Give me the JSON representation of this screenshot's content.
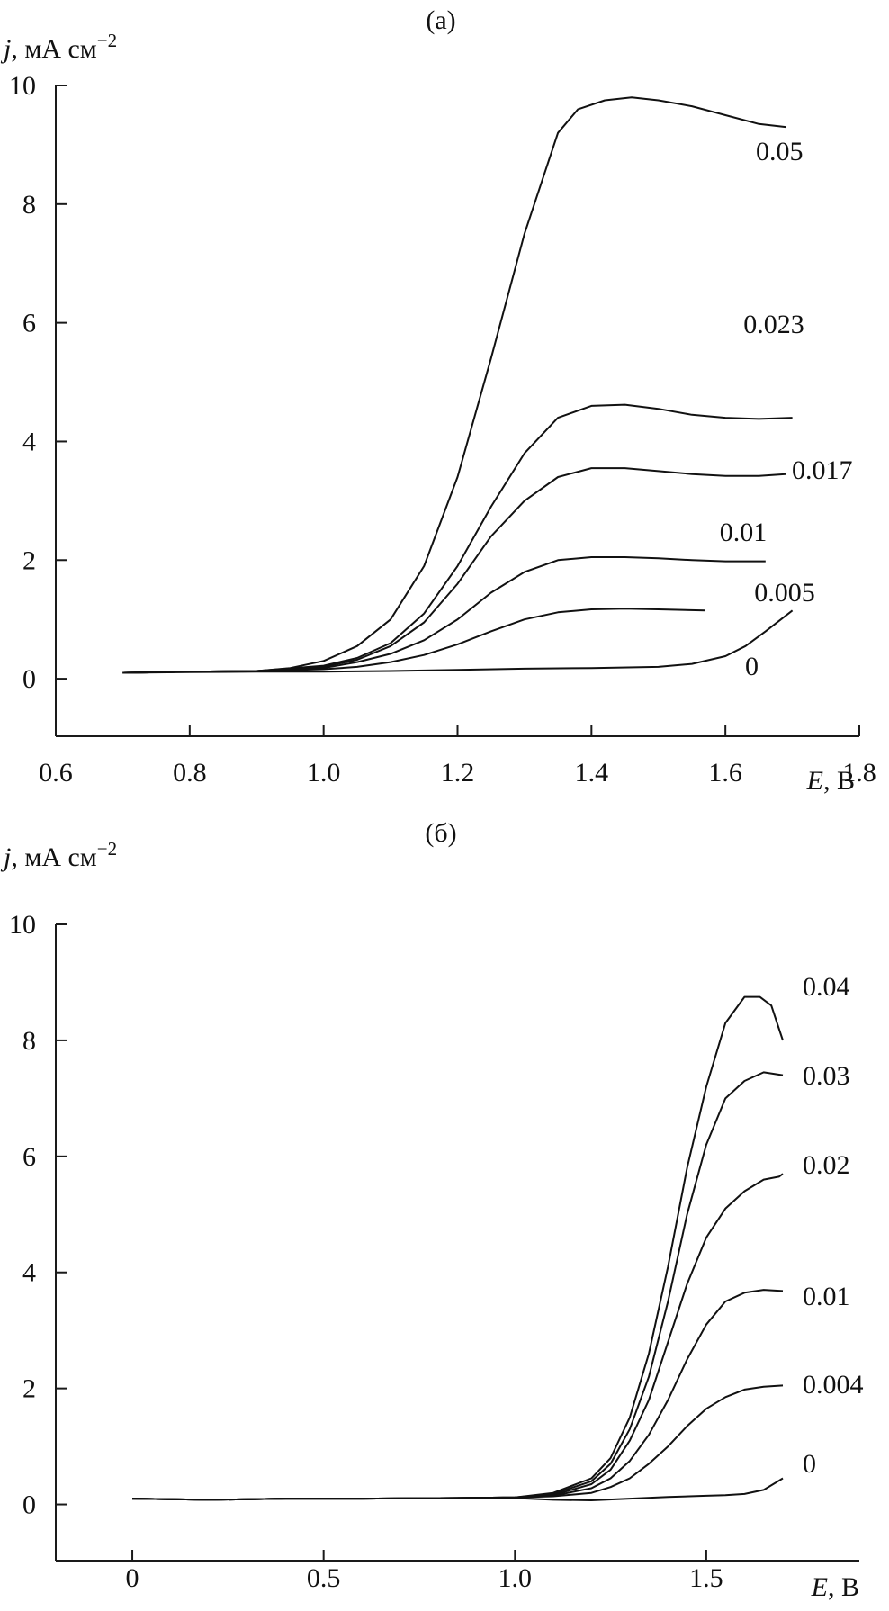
{
  "chart_data": [
    {
      "type": "line",
      "panel_label": "(a)",
      "ylabel_var": "j",
      "ylabel_units": ", мА см",
      "ylabel_exp": "−2",
      "xlabel_var": "E",
      "xlabel_units": ", В",
      "xlim": [
        0.6,
        1.8
      ],
      "ylim": [
        -1,
        10
      ],
      "xticks": [
        0.6,
        0.8,
        1.0,
        1.2,
        1.4,
        1.6,
        1.8
      ],
      "xtick_labels": [
        "0.6",
        "0.8",
        "1.0",
        "1.2",
        "1.4",
        "1.6",
        "1.8"
      ],
      "yticks": [
        0,
        2,
        4,
        6,
        8,
        10
      ],
      "ytick_labels": [
        "0",
        "2",
        "4",
        "6",
        "8",
        "10"
      ],
      "grid": false,
      "series": [
        {
          "name": "0.05",
          "x": [
            0.7,
            0.8,
            0.9,
            0.95,
            1.0,
            1.05,
            1.1,
            1.15,
            1.2,
            1.25,
            1.3,
            1.35,
            1.38,
            1.42,
            1.46,
            1.5,
            1.55,
            1.6,
            1.65,
            1.69
          ],
          "y": [
            0.1,
            0.12,
            0.13,
            0.18,
            0.3,
            0.55,
            1.0,
            1.9,
            3.4,
            5.4,
            7.5,
            9.2,
            9.6,
            9.75,
            9.8,
            9.75,
            9.65,
            9.5,
            9.35,
            9.3
          ]
        },
        {
          "name": "0.023",
          "x": [
            0.7,
            0.8,
            0.9,
            1.0,
            1.05,
            1.1,
            1.15,
            1.2,
            1.25,
            1.3,
            1.35,
            1.4,
            1.45,
            1.5,
            1.55,
            1.6,
            1.65,
            1.7
          ],
          "y": [
            0.1,
            0.12,
            0.13,
            0.22,
            0.35,
            0.6,
            1.1,
            1.9,
            2.9,
            3.8,
            4.4,
            4.6,
            4.62,
            4.55,
            4.45,
            4.4,
            4.38,
            4.4
          ]
        },
        {
          "name": "0.017",
          "x": [
            0.7,
            0.8,
            0.9,
            1.0,
            1.05,
            1.1,
            1.15,
            1.2,
            1.25,
            1.3,
            1.35,
            1.4,
            1.45,
            1.5,
            1.55,
            1.6,
            1.65,
            1.69
          ],
          "y": [
            0.1,
            0.12,
            0.13,
            0.2,
            0.32,
            0.55,
            0.95,
            1.6,
            2.4,
            3.0,
            3.4,
            3.55,
            3.55,
            3.5,
            3.45,
            3.42,
            3.42,
            3.45
          ]
        },
        {
          "name": "0.01",
          "x": [
            0.7,
            0.8,
            0.9,
            1.0,
            1.05,
            1.1,
            1.15,
            1.2,
            1.25,
            1.3,
            1.35,
            1.4,
            1.45,
            1.5,
            1.55,
            1.6,
            1.66
          ],
          "y": [
            0.1,
            0.12,
            0.13,
            0.18,
            0.28,
            0.42,
            0.65,
            1.0,
            1.45,
            1.8,
            2.0,
            2.05,
            2.05,
            2.03,
            2.0,
            1.98,
            1.98
          ]
        },
        {
          "name": "0.005",
          "x": [
            0.7,
            0.8,
            0.9,
            1.0,
            1.05,
            1.1,
            1.15,
            1.2,
            1.25,
            1.3,
            1.35,
            1.4,
            1.45,
            1.5,
            1.57
          ],
          "y": [
            0.1,
            0.12,
            0.13,
            0.16,
            0.2,
            0.28,
            0.4,
            0.58,
            0.8,
            1.0,
            1.12,
            1.17,
            1.18,
            1.17,
            1.15
          ]
        },
        {
          "name": "0",
          "x": [
            0.7,
            0.8,
            0.9,
            1.0,
            1.1,
            1.2,
            1.3,
            1.4,
            1.5,
            1.55,
            1.6,
            1.63,
            1.66,
            1.7
          ],
          "y": [
            0.1,
            0.11,
            0.12,
            0.12,
            0.13,
            0.15,
            0.17,
            0.18,
            0.2,
            0.25,
            0.38,
            0.55,
            0.8,
            1.15
          ]
        }
      ]
    },
    {
      "type": "line",
      "panel_label": "(б)",
      "ylabel_var": "j",
      "ylabel_units": ", мА см",
      "ylabel_exp": "−2",
      "xlabel_var": "E",
      "xlabel_units": ", В",
      "xlim": [
        -0.2,
        1.9
      ],
      "ylim": [
        -1,
        10
      ],
      "xticks": [
        0,
        0.5,
        1.0,
        1.5
      ],
      "xtick_labels": [
        "0",
        "0.5",
        "1.0",
        "1.5"
      ],
      "yticks": [
        0,
        2,
        4,
        6,
        8,
        10
      ],
      "ytick_labels": [
        "0",
        "2",
        "4",
        "6",
        "8",
        "10"
      ],
      "grid": false,
      "series": [
        {
          "name": "0.04",
          "x": [
            0.0,
            0.2,
            0.4,
            0.6,
            0.8,
            1.0,
            1.1,
            1.2,
            1.25,
            1.3,
            1.35,
            1.4,
            1.45,
            1.5,
            1.55,
            1.6,
            1.64,
            1.67,
            1.69,
            1.7
          ],
          "y": [
            0.1,
            0.08,
            0.1,
            0.1,
            0.11,
            0.12,
            0.2,
            0.45,
            0.8,
            1.5,
            2.6,
            4.1,
            5.8,
            7.2,
            8.3,
            8.75,
            8.75,
            8.6,
            8.2,
            8.0
          ]
        },
        {
          "name": "0.03",
          "x": [
            0.0,
            0.2,
            0.4,
            0.6,
            0.8,
            1.0,
            1.1,
            1.2,
            1.25,
            1.3,
            1.35,
            1.4,
            1.45,
            1.5,
            1.55,
            1.6,
            1.65,
            1.7
          ],
          "y": [
            0.1,
            0.08,
            0.1,
            0.1,
            0.11,
            0.12,
            0.18,
            0.4,
            0.7,
            1.3,
            2.2,
            3.5,
            5.0,
            6.2,
            7.0,
            7.3,
            7.45,
            7.4
          ]
        },
        {
          "name": "0.02",
          "x": [
            0.0,
            0.2,
            0.4,
            0.6,
            0.8,
            1.0,
            1.1,
            1.2,
            1.25,
            1.3,
            1.35,
            1.4,
            1.45,
            1.5,
            1.55,
            1.6,
            1.65,
            1.69,
            1.7
          ],
          "y": [
            0.1,
            0.08,
            0.1,
            0.1,
            0.11,
            0.12,
            0.16,
            0.35,
            0.6,
            1.1,
            1.8,
            2.8,
            3.8,
            4.6,
            5.1,
            5.4,
            5.6,
            5.65,
            5.7
          ]
        },
        {
          "name": "0.01",
          "x": [
            0.0,
            0.2,
            0.4,
            0.6,
            0.8,
            1.0,
            1.1,
            1.2,
            1.25,
            1.3,
            1.35,
            1.4,
            1.45,
            1.5,
            1.55,
            1.6,
            1.65,
            1.7
          ],
          "y": [
            0.1,
            0.08,
            0.1,
            0.1,
            0.11,
            0.12,
            0.15,
            0.28,
            0.45,
            0.75,
            1.2,
            1.8,
            2.5,
            3.1,
            3.5,
            3.65,
            3.7,
            3.68
          ]
        },
        {
          "name": "0.004",
          "x": [
            0.0,
            0.2,
            0.4,
            0.6,
            0.8,
            1.0,
            1.1,
            1.2,
            1.25,
            1.3,
            1.35,
            1.4,
            1.45,
            1.5,
            1.55,
            1.6,
            1.65,
            1.7
          ],
          "y": [
            0.1,
            0.08,
            0.1,
            0.1,
            0.11,
            0.12,
            0.14,
            0.2,
            0.3,
            0.45,
            0.7,
            1.0,
            1.35,
            1.65,
            1.85,
            1.98,
            2.03,
            2.05
          ]
        },
        {
          "name": "0",
          "x": [
            0.0,
            0.2,
            0.4,
            0.6,
            0.8,
            1.0,
            1.1,
            1.2,
            1.3,
            1.4,
            1.5,
            1.55,
            1.6,
            1.65,
            1.7
          ],
          "y": [
            0.1,
            0.08,
            0.1,
            0.1,
            0.11,
            0.11,
            0.08,
            0.07,
            0.1,
            0.13,
            0.15,
            0.16,
            0.18,
            0.25,
            0.45
          ]
        }
      ]
    }
  ]
}
